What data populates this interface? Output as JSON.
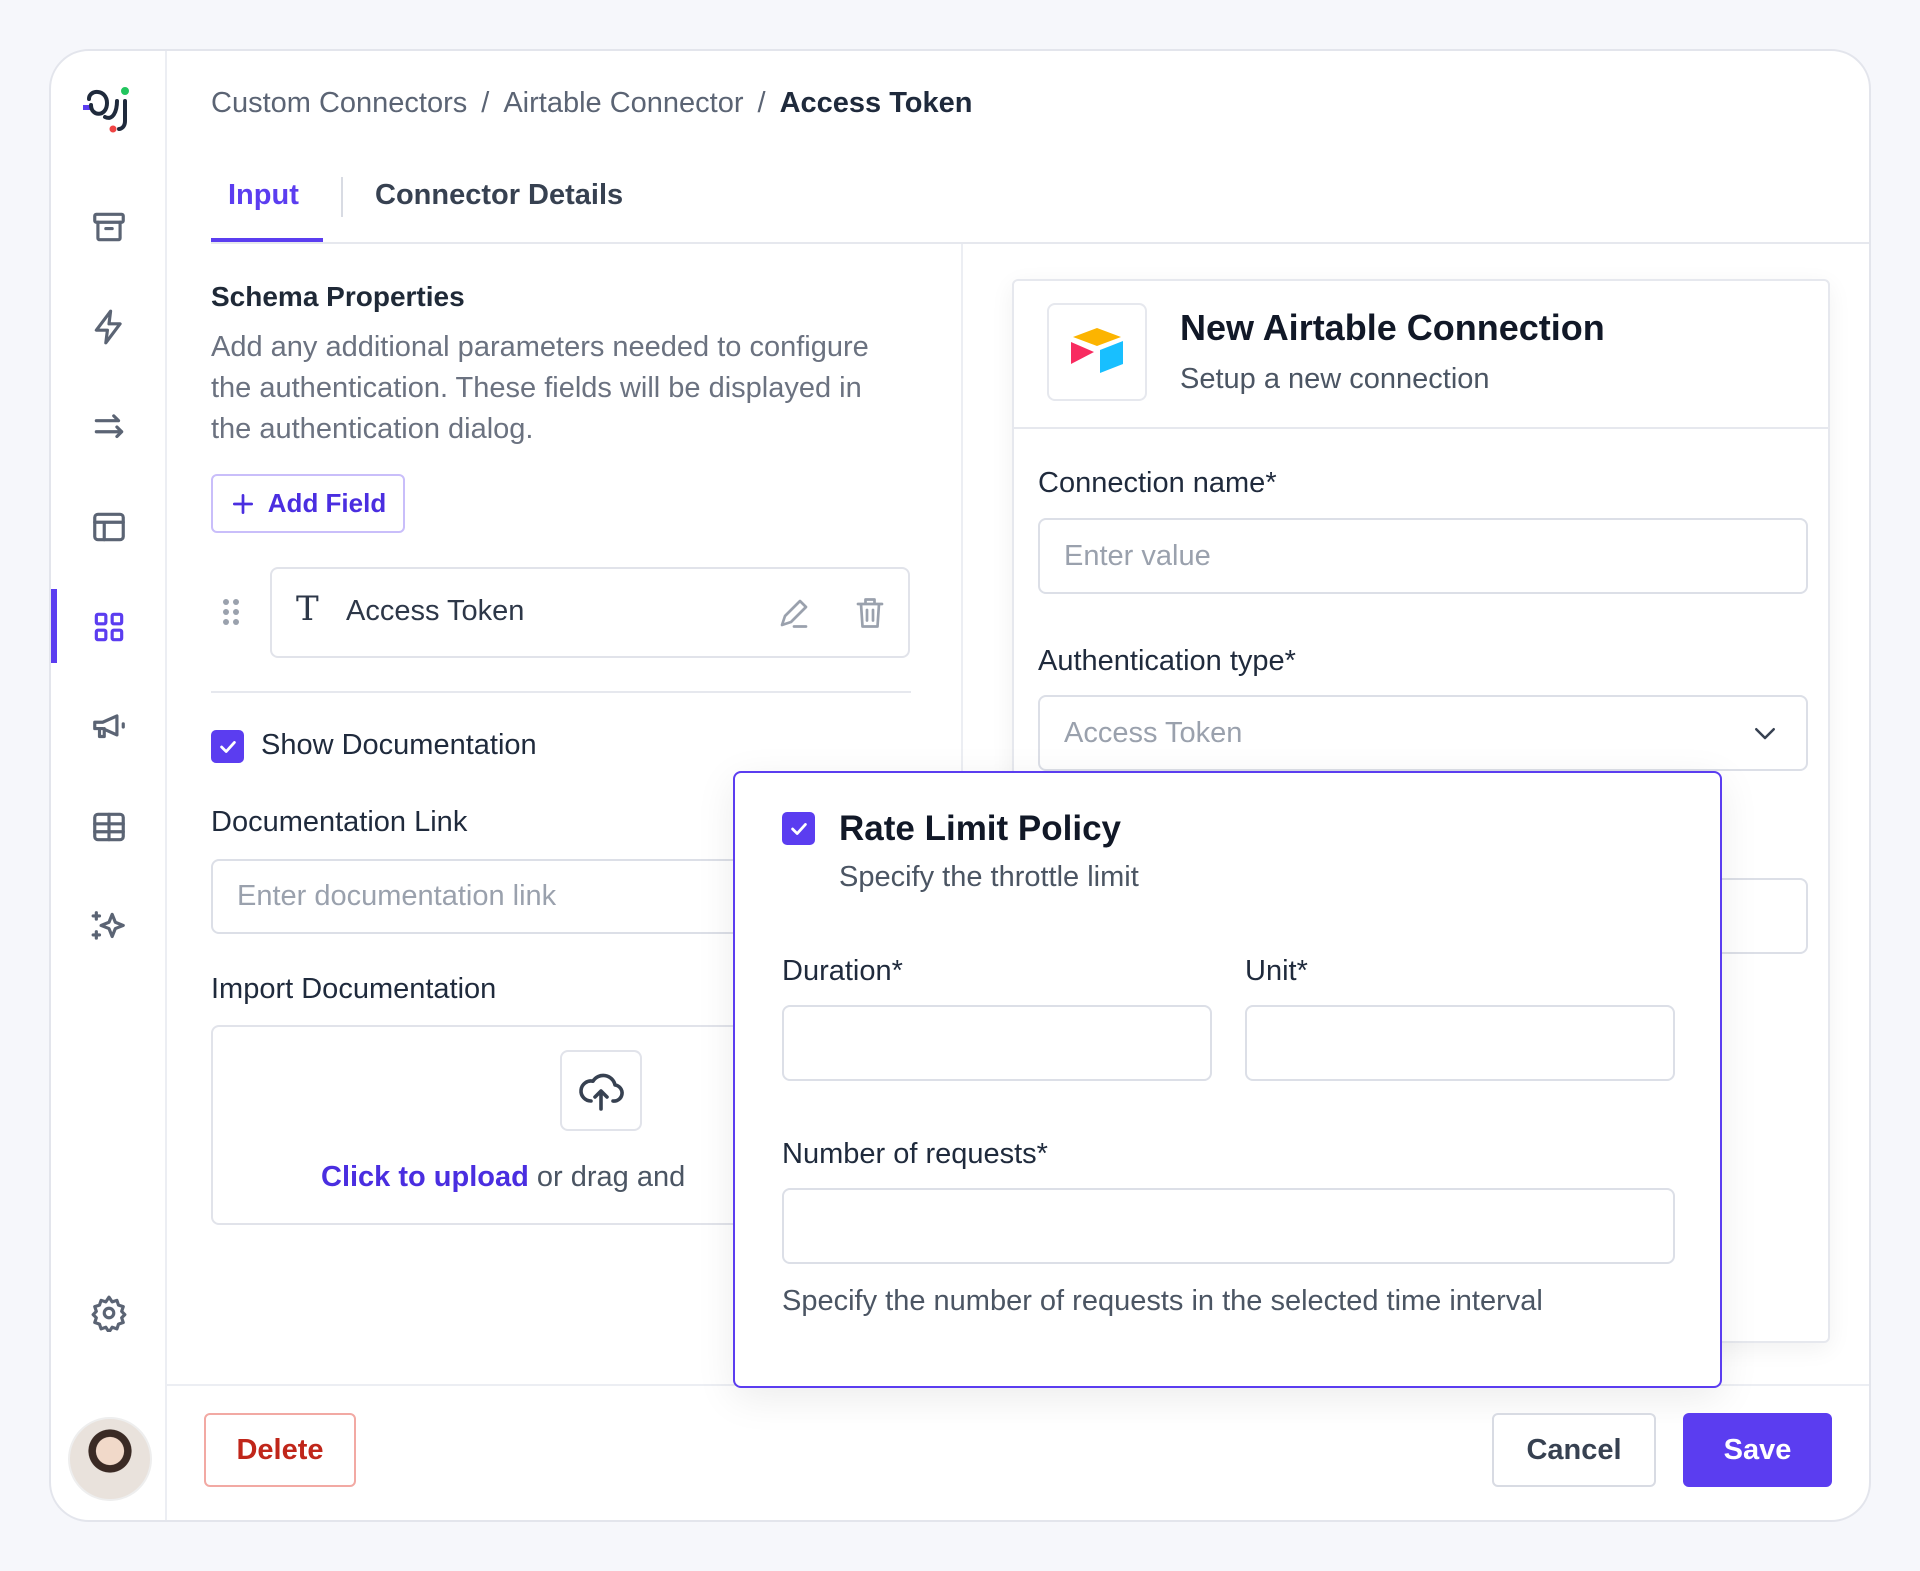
{
  "breadcrumb": [
    "Custom Connectors",
    "Airtable Connector",
    "Access Token"
  ],
  "tabs": {
    "input": "Input",
    "details": "Connector Details"
  },
  "schema": {
    "title": "Schema Properties",
    "description": "Add any additional parameters needed to configure the authentication. These fields will be displayed in the authentication dialog.",
    "add_field": "Add Field",
    "field_name": "Access Token"
  },
  "docs": {
    "show_label": "Show Documentation",
    "show_checked": true,
    "link_label": "Documentation Link",
    "link_placeholder": "Enter documentation link",
    "import_label": "Import Documentation",
    "upload_link": "Click to upload",
    "upload_rest": "or drag and"
  },
  "connection": {
    "title": "New Airtable Connection",
    "subtitle": "Setup a new connection",
    "name_label": "Connection name*",
    "name_placeholder": "Enter value",
    "auth_label": "Authentication type*",
    "auth_value": "Access Token"
  },
  "rate_limit": {
    "title": "Rate Limit Policy",
    "checked": true,
    "subtitle": "Specify the throttle limit",
    "duration_label": "Duration*",
    "unit_label": "Unit*",
    "requests_label": "Number of requests*",
    "requests_help": "Specify the number of requests in the selected time interval"
  },
  "footer": {
    "delete": "Delete",
    "cancel": "Cancel",
    "save": "Save"
  },
  "colors": {
    "accent": "#5b3df0",
    "danger": "#c0261a"
  }
}
